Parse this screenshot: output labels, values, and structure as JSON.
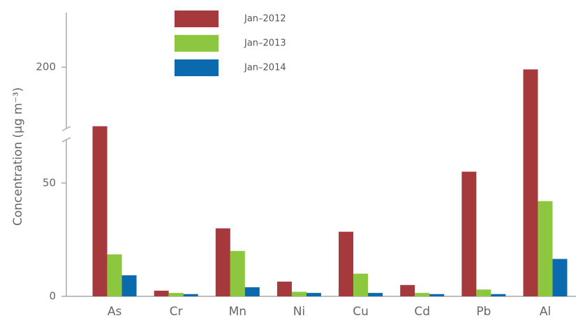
{
  "chart_data": {
    "type": "bar",
    "y_label": "Concentration (μg m⁻³)",
    "categories": [
      "As",
      "Cr",
      "Mn",
      "Ni",
      "Cu",
      "Cd",
      "Pb",
      "Al"
    ],
    "series": [
      {
        "name": "Jan–2012",
        "color": "#a5393b",
        "values": [
          173,
          2.5,
          30,
          6.5,
          28.5,
          5,
          55,
          199
        ]
      },
      {
        "name": "Jan–2013",
        "color": "#8dc63f",
        "values": [
          18.5,
          1.5,
          20,
          2,
          10,
          1.5,
          3,
          42
        ]
      },
      {
        "name": "Jan–2014",
        "color": "#0b69ad",
        "values": [
          9.3,
          1,
          4,
          1.5,
          1.5,
          1,
          1,
          16.5
        ]
      }
    ],
    "ylim": [
      0,
      225
    ],
    "ybreak": [
      70,
      170
    ],
    "yticks": [
      0,
      50,
      200
    ]
  }
}
